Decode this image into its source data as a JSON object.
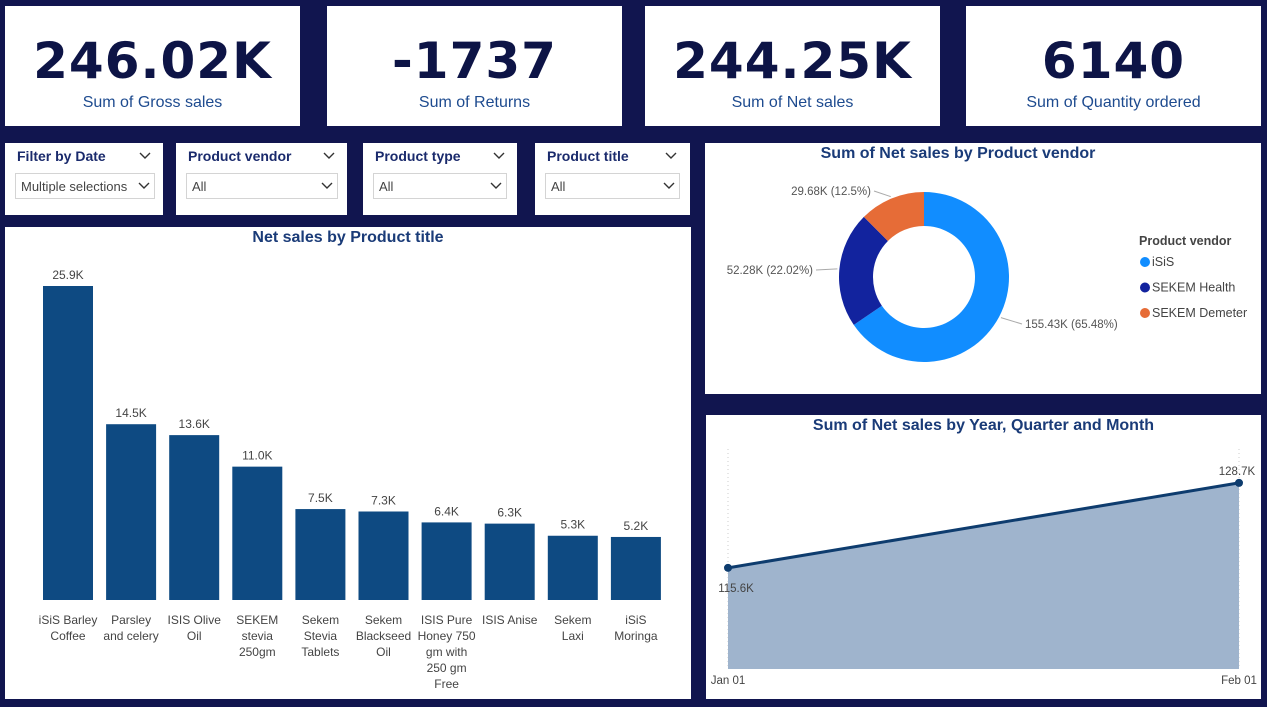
{
  "kpis": [
    {
      "value": "246.02K",
      "label": "Sum of Gross sales"
    },
    {
      "value": "-1737",
      "label": "Sum of Returns"
    },
    {
      "value": "244.25K",
      "label": "Sum of Net sales"
    },
    {
      "value": "6140",
      "label": "Sum of Quantity ordered"
    }
  ],
  "slicers": [
    {
      "title": "Filter by Date",
      "value": "Multiple selections"
    },
    {
      "title": "Product vendor",
      "value": "All"
    },
    {
      "title": "Product type",
      "value": "All"
    },
    {
      "title": "Product title",
      "value": "All"
    }
  ],
  "colors": {
    "background": "#11154f",
    "bar": "#0e4a82",
    "isis": "#118dff",
    "sekem_health": "#12239e",
    "sekem_demeter": "#e66c37",
    "area_fill": "#9fb4cd",
    "line": "#0e3c6e"
  },
  "chart_data": [
    {
      "type": "bar",
      "title": "Net sales by Product title",
      "categories": [
        [
          "iSiS Barley",
          "Coffee"
        ],
        [
          "Parsley",
          "and celery"
        ],
        [
          "ISIS Olive",
          "Oil"
        ],
        [
          "SEKEM",
          "stevia",
          "250gm"
        ],
        [
          "Sekem",
          "Stevia",
          "Tablets"
        ],
        [
          "Sekem",
          "Blackseed",
          "Oil"
        ],
        [
          "ISIS Pure",
          "Honey 750",
          "gm with",
          "250 gm",
          "Free"
        ],
        [
          "ISIS Anise"
        ],
        [
          "Sekem",
          "Laxi"
        ],
        [
          "iSiS",
          "Moringa"
        ]
      ],
      "values": [
        25.9,
        14.5,
        13.6,
        11.0,
        7.5,
        7.3,
        6.4,
        6.3,
        5.3,
        5.2
      ],
      "labels": [
        "25.9K",
        "14.5K",
        "13.6K",
        "11.0K",
        "7.5K",
        "7.3K",
        "6.4K",
        "6.3K",
        "5.3K",
        "5.2K"
      ]
    },
    {
      "type": "pie",
      "title": "Sum of Net sales by Product vendor",
      "legend_title": "Product vendor",
      "legend_position": "right",
      "slices": [
        {
          "name": "iSiS",
          "value": 155.43,
          "label": "155.43K (65.48%)"
        },
        {
          "name": "SEKEM Health",
          "value": 52.28,
          "label": "52.28K (22.02%)"
        },
        {
          "name": "SEKEM Demeter",
          "value": 29.68,
          "label": "29.68K (12.5%)"
        }
      ]
    },
    {
      "type": "area",
      "title": "Sum of Net sales by Year, Quarter and Month",
      "x": [
        "Jan 01",
        "Feb 01"
      ],
      "values": [
        115.6,
        128.7
      ],
      "labels": [
        "115.6K",
        "128.7K"
      ]
    }
  ]
}
